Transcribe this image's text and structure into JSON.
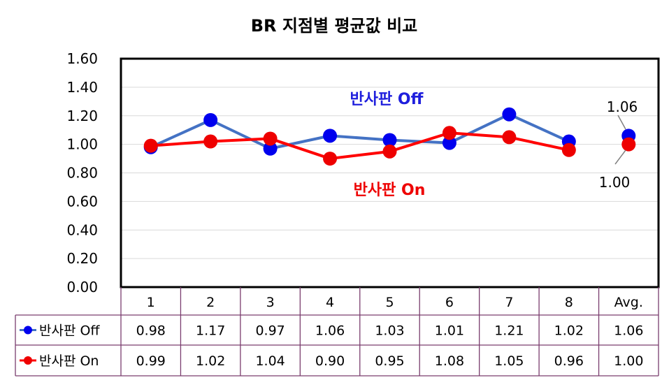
{
  "chart_data": {
    "type": "line",
    "title": "BR 지점별 평균값 비교",
    "categories": [
      "1",
      "2",
      "3",
      "4",
      "5",
      "6",
      "7",
      "8",
      "Avg."
    ],
    "ylim": [
      0,
      1.6
    ],
    "yticks": [
      "0.00",
      "0.20",
      "0.40",
      "0.60",
      "0.80",
      "1.00",
      "1.20",
      "1.40",
      "1.60"
    ],
    "grid": true,
    "legend": "data-table",
    "series": [
      {
        "name": "반사판 Off",
        "color": "#0000ee",
        "line_color": "#4472c4",
        "values": [
          0.98,
          1.17,
          0.97,
          1.06,
          1.03,
          1.01,
          1.21,
          1.02,
          1.06
        ],
        "labels": [
          "0.98",
          "1.17",
          "0.97",
          "1.06",
          "1.03",
          "1.01",
          "1.21",
          "1.02",
          "1.06"
        ]
      },
      {
        "name": "반사판 On",
        "color": "#ee0000",
        "line_color": "#ff0000",
        "values": [
          0.99,
          1.02,
          1.04,
          0.9,
          0.95,
          1.08,
          1.05,
          0.96,
          1.0
        ],
        "labels": [
          "0.99",
          "1.02",
          "1.04",
          "0.90",
          "0.95",
          "1.08",
          "1.05",
          "0.96",
          "1.00"
        ]
      }
    ],
    "annotations": {
      "off_label": "반사판 Off",
      "on_label": "반사판 On",
      "avg_off": "1.06",
      "avg_on": "1.00"
    }
  }
}
